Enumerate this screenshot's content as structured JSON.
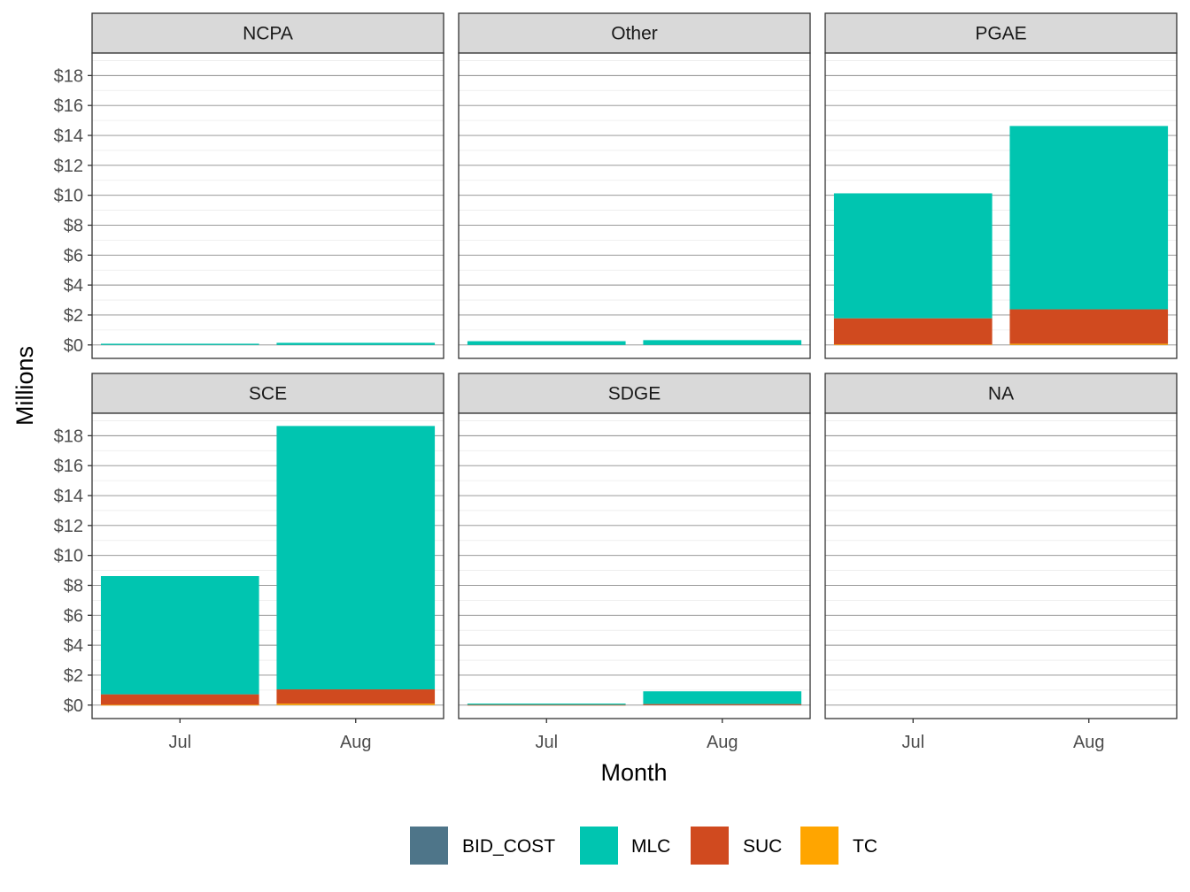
{
  "chart_data": {
    "type": "bar",
    "stacked": true,
    "faceted": true,
    "facet_layout": "3 columns x 2 rows",
    "xlabel": "Month",
    "ylabel": "Millions",
    "categories": [
      "Jul",
      "Aug"
    ],
    "y_tick_values": [
      0,
      2,
      4,
      6,
      8,
      10,
      12,
      14,
      16,
      18
    ],
    "y_tick_labels": [
      "$0",
      "$2",
      "$4",
      "$6",
      "$8",
      "$10",
      "$12",
      "$14",
      "$16",
      "$18"
    ],
    "ylim": [
      -0.9,
      19.5
    ],
    "grid": true,
    "legend_position": "bottom",
    "stack_order": [
      "TC",
      "SUC",
      "MLC",
      "BID_COST"
    ],
    "legend": [
      {
        "name": "BID_COST",
        "color": "#4E7589"
      },
      {
        "name": "MLC",
        "color": "#00C5B0"
      },
      {
        "name": "SUC",
        "color": "#D04A1F"
      },
      {
        "name": "TC",
        "color": "#FFA500"
      }
    ],
    "facets": [
      {
        "label": "NCPA",
        "series": {
          "BID_COST": [
            0,
            0
          ],
          "MLC": [
            0.08,
            0.14
          ],
          "SUC": [
            0,
            0
          ],
          "TC": [
            0,
            0
          ]
        }
      },
      {
        "label": "Other",
        "series": {
          "BID_COST": [
            0,
            0
          ],
          "MLC": [
            0.25,
            0.32
          ],
          "SUC": [
            0,
            0
          ],
          "TC": [
            0,
            0
          ]
        }
      },
      {
        "label": "PGAE",
        "series": {
          "BID_COST": [
            0,
            0
          ],
          "MLC": [
            8.35,
            12.25
          ],
          "SUC": [
            1.75,
            2.3
          ],
          "TC": [
            0.03,
            0.08
          ]
        }
      },
      {
        "label": "SCE",
        "series": {
          "BID_COST": [
            0,
            0
          ],
          "MLC": [
            7.9,
            17.6
          ],
          "SUC": [
            0.7,
            0.95
          ],
          "TC": [
            0.02,
            0.1
          ]
        }
      },
      {
        "label": "SDGE",
        "series": {
          "BID_COST": [
            0,
            0
          ],
          "MLC": [
            0.08,
            0.85
          ],
          "SUC": [
            0.02,
            0.07
          ],
          "TC": [
            0,
            0
          ]
        }
      },
      {
        "label": "NA",
        "series": {
          "BID_COST": [
            0,
            0
          ],
          "MLC": [
            0,
            0
          ],
          "SUC": [
            0,
            0
          ],
          "TC": [
            0,
            0
          ]
        }
      }
    ]
  }
}
